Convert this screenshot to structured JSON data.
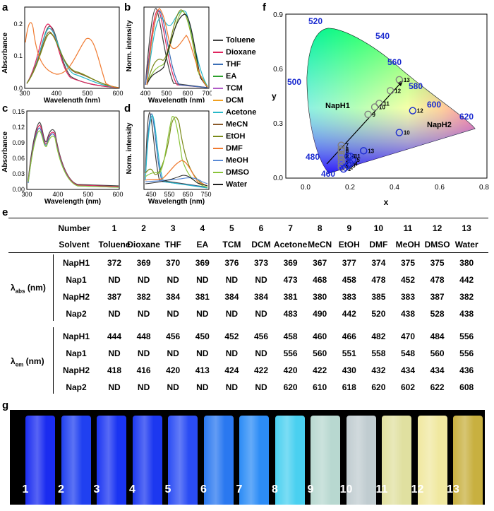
{
  "panel_labels": {
    "a": "a",
    "b": "b",
    "c": "c",
    "d": "d",
    "e": "e",
    "f": "f",
    "g": "g"
  },
  "legend": [
    {
      "name": "Toluene",
      "color": "#444444"
    },
    {
      "name": "Dioxane",
      "color": "#e0245e"
    },
    {
      "name": "THF",
      "color": "#3b6fb6"
    },
    {
      "name": "EA",
      "color": "#2ca02c"
    },
    {
      "name": "TCM",
      "color": "#b05cc6"
    },
    {
      "name": "DCM",
      "color": "#f0a020"
    },
    {
      "name": "Acetone",
      "color": "#28b8c8"
    },
    {
      "name": "MeCN",
      "color": "#8a5a2b"
    },
    {
      "name": "EtOH",
      "color": "#7a8a1a"
    },
    {
      "name": "DMF",
      "color": "#f07a30"
    },
    {
      "name": "MeOH",
      "color": "#5a8ad6"
    },
    {
      "name": "DMSO",
      "color": "#8ac43a"
    },
    {
      "name": "Water",
      "color": "#222222"
    }
  ],
  "chart_data": [
    {
      "type": "line",
      "panel": "a",
      "xlabel": "Wavelength (nm)",
      "ylabel": "Absorbance",
      "xlim": [
        300,
        600
      ],
      "ylim": [
        0,
        0.25
      ],
      "xticks": [
        "300",
        "400",
        "500",
        "600"
      ],
      "yticks": [
        "0.0",
        "0.1",
        "0.2"
      ],
      "series": [
        {
          "name": "Toluene",
          "values": [
            [
              300,
              0.03
            ],
            [
              330,
              0.08
            ],
            [
              370,
              0.2
            ],
            [
              400,
              0.08
            ],
            [
              450,
              0.04
            ],
            [
              500,
              0.01
            ],
            [
              600,
              0.0
            ]
          ]
        },
        {
          "name": "DMF",
          "values": [
            [
              305,
              0.18
            ],
            [
              315,
              0.23
            ],
            [
              330,
              0.08
            ],
            [
              370,
              0.06
            ],
            [
              430,
              0.08
            ],
            [
              475,
              0.17
            ],
            [
              520,
              0.06
            ],
            [
              600,
              0.0
            ]
          ]
        },
        {
          "name": "Acetone",
          "values": [
            [
              300,
              0.03
            ],
            [
              340,
              0.1
            ],
            [
              370,
              0.19
            ],
            [
              400,
              0.1
            ],
            [
              470,
              0.05
            ],
            [
              520,
              0.01
            ],
            [
              600,
              0.0
            ]
          ]
        }
      ]
    },
    {
      "type": "line",
      "panel": "b",
      "xlabel": "Wavelength (nm)",
      "ylabel": "Norm. intensity",
      "xlim": [
        400,
        700
      ],
      "ylim": [
        0,
        1.0
      ],
      "xticks": [
        "400",
        "500",
        "600",
        "700"
      ],
      "yticks": [
        "0.0",
        "0.2",
        "0.4",
        "0.6",
        "0.8",
        "1.0"
      ],
      "series": [
        {
          "name": "Toluene",
          "values": [
            [
              400,
              0.05
            ],
            [
              444,
              1.0
            ],
            [
              480,
              0.4
            ],
            [
              550,
              0.05
            ],
            [
              700,
              0.0
            ]
          ]
        },
        {
          "name": "Acetone",
          "values": [
            [
              420,
              0.1
            ],
            [
              458,
              0.9
            ],
            [
              520,
              0.6
            ],
            [
              556,
              0.95
            ],
            [
              620,
              0.3
            ],
            [
              700,
              0.0
            ]
          ]
        }
      ]
    },
    {
      "type": "line",
      "panel": "c",
      "xlabel": "Wavelength (nm)",
      "ylabel": "Absorbance",
      "xlim": [
        300,
        600
      ],
      "ylim": [
        0,
        0.15
      ],
      "xticks": [
        "300",
        "400",
        "500",
        "600"
      ],
      "yticks": [
        "0.00",
        "0.03",
        "0.06",
        "0.09",
        "0.12",
        "0.15"
      ],
      "series": [
        {
          "name": "Toluene",
          "values": [
            [
              300,
              0.03
            ],
            [
              330,
              0.13
            ],
            [
              345,
              0.08
            ],
            [
              380,
              0.11
            ],
            [
              420,
              0.01
            ],
            [
              600,
              0.0
            ]
          ]
        }
      ]
    },
    {
      "type": "line",
      "panel": "d",
      "xlabel": "Wavelength (nm)",
      "ylabel": "Norm. intensity",
      "xlim": [
        400,
        750
      ],
      "ylim": [
        0,
        1.0
      ],
      "xticks": [
        "450",
        "550",
        "650",
        "750"
      ],
      "yticks": [
        "0.0",
        "0.2",
        "0.4",
        "0.6",
        "0.8",
        "1.0"
      ],
      "series": [
        {
          "name": "Toluene",
          "values": [
            [
              400,
              0.1
            ],
            [
              418,
              1.0
            ],
            [
              460,
              0.2
            ],
            [
              550,
              0.02
            ],
            [
              750,
              0.0
            ]
          ]
        },
        {
          "name": "Water",
          "values": [
            [
              400,
              0.1
            ],
            [
              436,
              0.3
            ],
            [
              470,
              0.1
            ],
            [
              608,
              1.0
            ],
            [
              680,
              0.2
            ],
            [
              750,
              0.02
            ]
          ]
        }
      ]
    },
    {
      "type": "scatter",
      "panel": "f",
      "xlabel": "x",
      "ylabel": "y",
      "xlim": [
        0,
        0.8
      ],
      "ylim": [
        0,
        0.9
      ],
      "xticks": [
        "0.0",
        "0.2",
        "0.4",
        "0.6",
        "0.8"
      ],
      "yticks": [
        "0.0",
        "0.3",
        "0.6",
        "0.9"
      ],
      "wavelength_labels": [
        "460",
        "480",
        "500",
        "520",
        "540",
        "560",
        "580",
        "600",
        "620"
      ],
      "annotations": [
        "NapH1",
        "NapH2"
      ],
      "series": [
        {
          "name": "NapH1",
          "points": [
            [
              0.16,
              0.06,
              "1"
            ],
            [
              0.16,
              0.08,
              "2"
            ],
            [
              0.16,
              0.1,
              "3"
            ],
            [
              0.16,
              0.12,
              "4"
            ],
            [
              0.16,
              0.13,
              "5"
            ],
            [
              0.16,
              0.15,
              "6"
            ],
            [
              0.16,
              0.18,
              "7"
            ],
            [
              0.16,
              0.16,
              "8"
            ],
            [
              0.28,
              0.35,
              "9"
            ],
            [
              0.31,
              0.39,
              "10"
            ],
            [
              0.33,
              0.41,
              "11"
            ],
            [
              0.38,
              0.48,
              "12"
            ],
            [
              0.42,
              0.54,
              "13"
            ]
          ]
        },
        {
          "name": "NapH2",
          "points": [
            [
              0.17,
              0.05,
              "1"
            ],
            [
              0.18,
              0.06,
              "2"
            ],
            [
              0.19,
              0.07,
              "3"
            ],
            [
              0.2,
              0.08,
              "4"
            ],
            [
              0.21,
              0.1,
              "5"
            ],
            [
              0.19,
              0.12,
              "6"
            ],
            [
              0.2,
              0.12,
              "11"
            ],
            [
              0.26,
              0.15,
              "13"
            ],
            [
              0.42,
              0.25,
              "10"
            ],
            [
              0.48,
              0.37,
              "12"
            ]
          ]
        }
      ]
    }
  ],
  "table": {
    "numbers_header": "Number",
    "numbers": [
      "1",
      "2",
      "3",
      "4",
      "5",
      "6",
      "7",
      "8",
      "9",
      "10",
      "11",
      "12",
      "13"
    ],
    "solvent_header": "Solvent",
    "solvents": [
      "Toluene",
      "Dioxane",
      "THF",
      "EA",
      "TCM",
      "DCM",
      "Acetone",
      "MeCN",
      "EtOH",
      "DMF",
      "MeOH",
      "DMSO",
      "Water"
    ],
    "abs_group": {
      "label": "λabs (nm)",
      "label_main": "λ",
      "label_sub": "abs",
      "label_unit": " (nm)",
      "rows": [
        {
          "name": "NapH1",
          "values": [
            "372",
            "369",
            "370",
            "369",
            "376",
            "373",
            "369",
            "367",
            "377",
            "374",
            "375",
            "375",
            "380"
          ]
        },
        {
          "name": "Nap1",
          "values": [
            "ND",
            "ND",
            "ND",
            "ND",
            "ND",
            "ND",
            "473",
            "468",
            "458",
            "478",
            "452",
            "478",
            "442"
          ]
        },
        {
          "name": "NapH2",
          "values": [
            "387",
            "382",
            "384",
            "381",
            "384",
            "384",
            "381",
            "380",
            "383",
            "385",
            "383",
            "387",
            "382"
          ]
        },
        {
          "name": "Nap2",
          "values": [
            "ND",
            "ND",
            "ND",
            "ND",
            "ND",
            "ND",
            "483",
            "490",
            "442",
            "520",
            "438",
            "528",
            "438"
          ]
        }
      ]
    },
    "em_group": {
      "label": "λem (nm)",
      "label_main": "λ",
      "label_sub": "em",
      "label_unit": " (nm)",
      "rows": [
        {
          "name": "NapH1",
          "values": [
            "444",
            "448",
            "456",
            "450",
            "452",
            "456",
            "458",
            "460",
            "466",
            "482",
            "470",
            "484",
            "556"
          ]
        },
        {
          "name": "Nap1",
          "values": [
            "ND",
            "ND",
            "ND",
            "ND",
            "ND",
            "ND",
            "556",
            "560",
            "551",
            "558",
            "548",
            "560",
            "556"
          ]
        },
        {
          "name": "NapH2",
          "values": [
            "418",
            "416",
            "420",
            "413",
            "424",
            "422",
            "420",
            "422",
            "430",
            "432",
            "434",
            "434",
            "436"
          ]
        },
        {
          "name": "Nap2",
          "values": [
            "ND",
            "ND",
            "ND",
            "ND",
            "ND",
            "ND",
            "620",
            "610",
            "618",
            "620",
            "602",
            "622",
            "608"
          ]
        }
      ]
    }
  },
  "vials": {
    "labels": [
      "1",
      "2",
      "3",
      "4",
      "5",
      "6",
      "7",
      "8",
      "9",
      "10",
      "11",
      "12",
      "13"
    ],
    "colors": [
      "#1a2cf0",
      "#2040f0",
      "#1a34f2",
      "#1c38f0",
      "#2a4cf4",
      "#2a78f0",
      "#2c8cf6",
      "#4ad0f0",
      "#b8d8d0",
      "#c0ccd0",
      "#e0e0a0",
      "#f0e8a0",
      "#c8b040"
    ]
  }
}
